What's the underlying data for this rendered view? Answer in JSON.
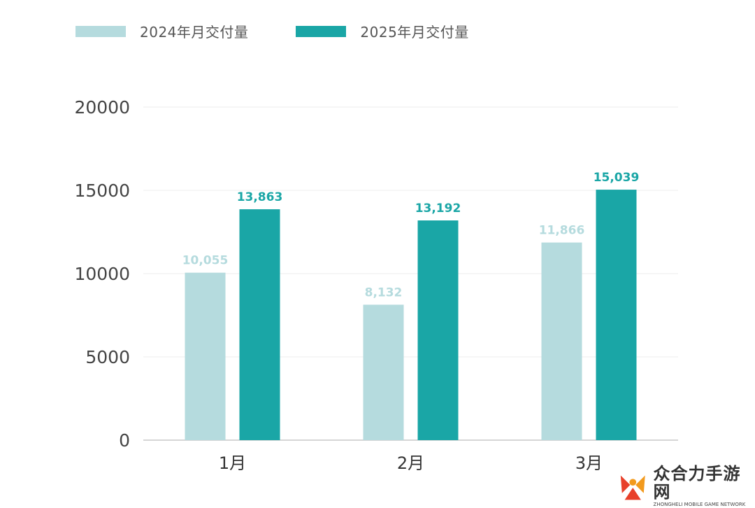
{
  "chart_data": {
    "type": "bar",
    "categories": [
      "1月",
      "2月",
      "3月"
    ],
    "series": [
      {
        "name": "2024年月交付量",
        "values": [
          10055,
          8132,
          11866
        ],
        "labels": [
          "10,055",
          "8,132",
          "11,866"
        ],
        "color": "#b5dbde"
      },
      {
        "name": "2025年月交付量",
        "values": [
          13863,
          13192,
          15039
        ],
        "labels": [
          "13,863",
          "13,192",
          "15,039"
        ],
        "color": "#1aa6a6"
      }
    ],
    "ylim": [
      0,
      20000
    ],
    "yticks": [
      "0",
      "5000",
      "10000",
      "15000",
      "20000"
    ],
    "grid": true,
    "legend": "top-left",
    "title": "",
    "xlabel": "",
    "ylabel": ""
  },
  "watermark": {
    "cn_text": "众合力手游网",
    "en_text": "ZHONGHELI MOBILE GAME NETWORK",
    "icon": "logo-icon"
  }
}
